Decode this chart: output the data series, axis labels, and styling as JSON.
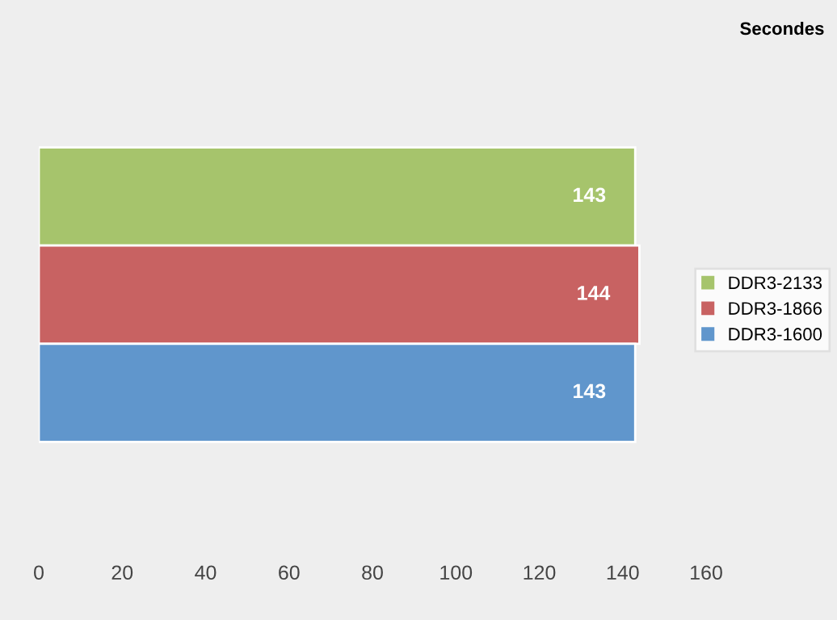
{
  "chart_data": {
    "type": "bar",
    "orientation": "horizontal",
    "xlabel": "Secondes",
    "categories": [
      null
    ],
    "series": [
      {
        "name": "DDR3-2133",
        "color": "#a6c46c",
        "values": [
          143
        ]
      },
      {
        "name": "DDR3-1866",
        "color": "#c86262",
        "values": [
          144
        ]
      },
      {
        "name": "DDR3-1600",
        "color": "#6096cc",
        "values": [
          143
        ]
      }
    ],
    "xlim": [
      0,
      160
    ],
    "xticks": [
      0,
      20,
      40,
      60,
      80,
      100,
      120,
      140,
      160
    ],
    "tick_labels": "x",
    "data_labels": true,
    "legend": "right",
    "grid": false
  }
}
